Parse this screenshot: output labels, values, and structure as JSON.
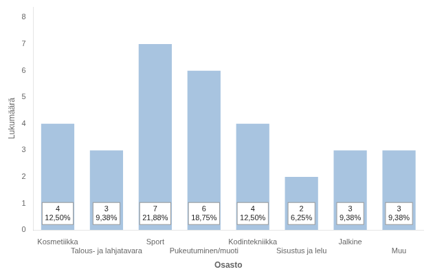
{
  "chart_data": {
    "type": "bar",
    "categories": [
      "Kosmetiikka",
      "Talous- ja lahjatavara",
      "Sport",
      "Pukeutuminen/muoti",
      "Kodintekniikka",
      "Sisustus ja lelu",
      "Jalkine",
      "Muu"
    ],
    "values": [
      4,
      3,
      7,
      6,
      4,
      2,
      3,
      3
    ],
    "value_labels": [
      "4\n12,50%",
      "3\n9,38%",
      "7\n21,88%",
      "6\n18,75%",
      "4\n12,50%",
      "2\n6,25%",
      "3\n9,38%",
      "3\n9,38%"
    ],
    "data_labels": true,
    "color": "#a8c4e0",
    "xlabel": "Osasto",
    "ylabel": "Lukumäärä",
    "ylim": [
      0,
      8.4
    ],
    "yticks": [
      0,
      1,
      2,
      3,
      4,
      5,
      6,
      7,
      8
    ],
    "grid": false
  }
}
